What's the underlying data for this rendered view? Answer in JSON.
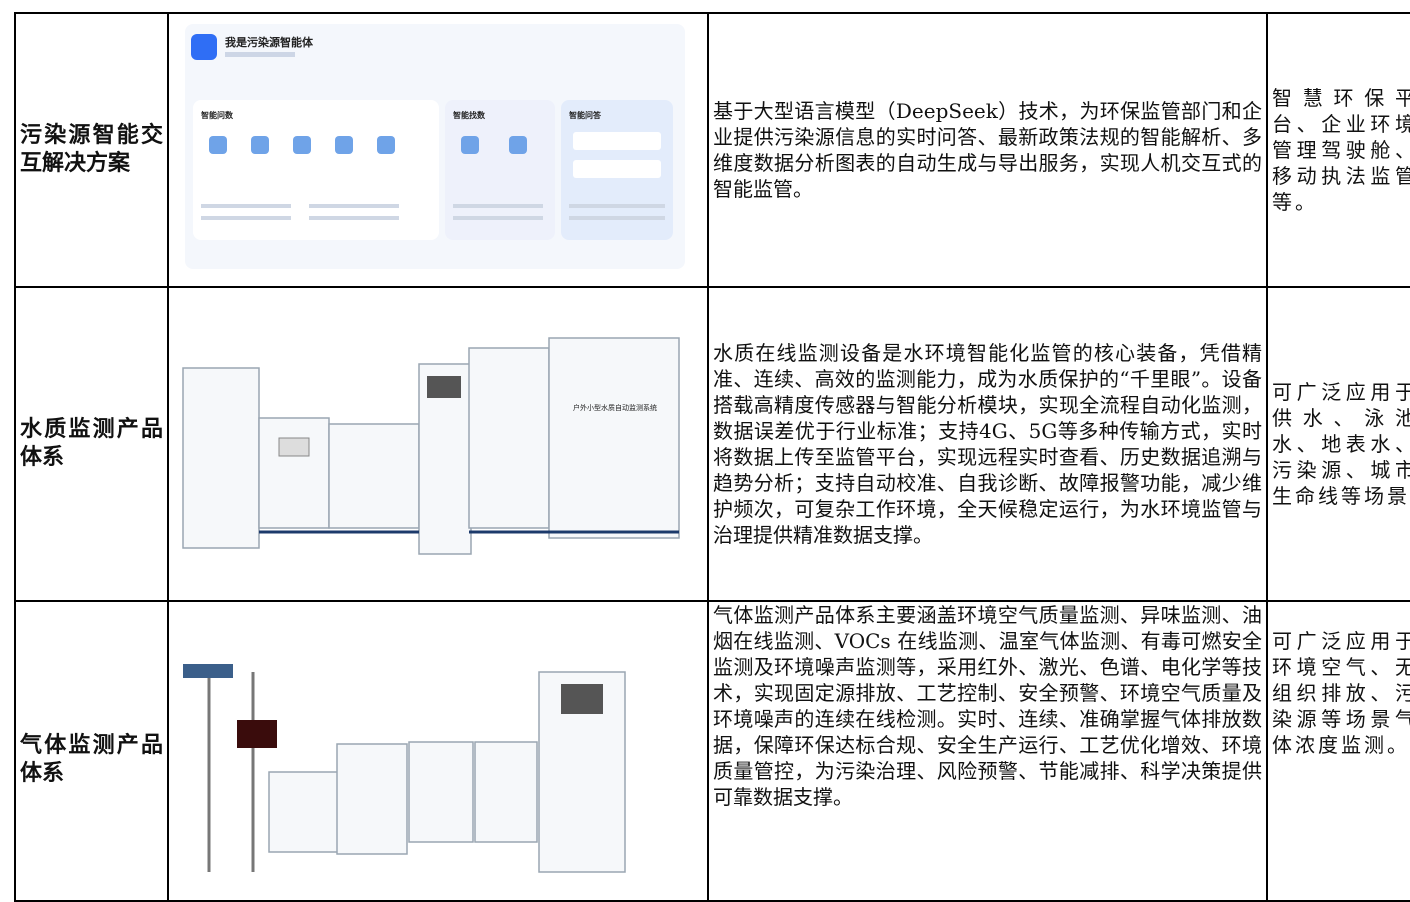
{
  "table": {
    "rows": [
      {
        "name": "污染源智能交互解决方案",
        "image": {
          "title": "我是污染源智能体",
          "panels": [
            "智能问数",
            "智能找数",
            "智能问答"
          ]
        },
        "description": "基于大型语言模型（DeepSeek）技术，为环保监管部门和企业提供污染源信息的实时问答、最新政策法规的智能解析、多维度数据分析图表的自动生成与导出服务，实现人机交互式的智能监管。",
        "scenario": "智慧环保平台、企业环境管理驾驶舱、移动执法监管等。"
      },
      {
        "name": "水质监测产品体系",
        "image": {
          "label": "户外小型水质自动监测系统"
        },
        "description": "水质在线监测设备是水环境智能化监管的核心装备，凭借精准、连续、高效的监测能力，成为水质保护的“千里眼”。设备搭载高精度传感器与智能分析模块，实现全流程自动化监测，数据误差优于行业标准；支持4G、5G等多种传输方式，实时将数据上传至监管平台，实现远程实时查看、历史数据追溯与趋势分析；支持自动校准、自我诊断、故障报警功能，减少维护频次，可复杂工作环境，全天候稳定运行，为水环境监管与治理提供精准数据支撑。",
        "scenario": "可广泛应用于供水、泳池水、地表水、污染源、城市生命线等场景"
      },
      {
        "name": "气体监测产品体系",
        "description": "气体监测产品体系主要涵盖环境空气质量监测、异味监测、油烟在线监测、VOCs 在线监测、温室气体监测、有毒可燃安全监测及环境噪声监测等，采用红外、激光、色谱、电化学等技术，实现固定源排放、工艺控制、安全预警、环境空气质量及环境噪声的连续在线检测。实时、连续、准确掌握气体排放数据，保障环保达标合规、安全生产运行、工艺优化增效、环境质量管控，为污染治理、风险预警、节能减排、科学决策提供可靠数据支撑。",
        "scenario": "可广泛应用于环境空气、无组织排放、污染源等场景气体浓度监测。"
      }
    ]
  }
}
